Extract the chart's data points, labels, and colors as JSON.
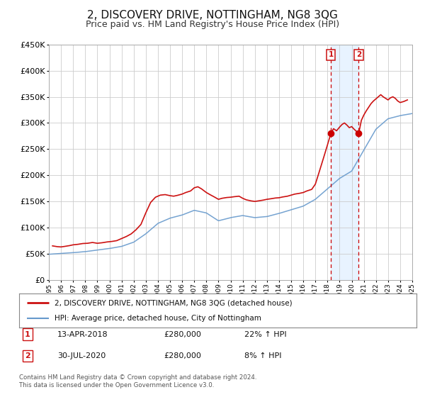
{
  "title": "2, DISCOVERY DRIVE, NOTTINGHAM, NG8 3QG",
  "subtitle": "Price paid vs. HM Land Registry's House Price Index (HPI)",
  "background_color": "#ffffff",
  "plot_bg_color": "#ffffff",
  "grid_color": "#cccccc",
  "title_fontsize": 11,
  "subtitle_fontsize": 9,
  "legend_label_red": "2, DISCOVERY DRIVE, NOTTINGHAM, NG8 3QG (detached house)",
  "legend_label_blue": "HPI: Average price, detached house, City of Nottingham",
  "transaction1_date": "13-APR-2018",
  "transaction1_price": "£280,000",
  "transaction1_hpi": "22% ↑ HPI",
  "transaction2_date": "30-JUL-2020",
  "transaction2_price": "£280,000",
  "transaction2_hpi": "8% ↑ HPI",
  "shade_color": "#ddeeff",
  "vline_color": "#cc0000",
  "dot_color": "#cc0000",
  "footer_text": "Contains HM Land Registry data © Crown copyright and database right 2024.\nThis data is licensed under the Open Government Licence v3.0.",
  "ylim_max": 450000,
  "ylim_min": 0,
  "red_line_color": "#cc1111",
  "blue_line_color": "#6699cc",
  "hpi_years": [
    1995,
    1996,
    1997,
    1998,
    1999,
    2000,
    2001,
    2002,
    2003,
    2004,
    2005,
    2006,
    2007,
    2008,
    2009,
    2010,
    2011,
    2012,
    2013,
    2014,
    2015,
    2016,
    2017,
    2018,
    2019,
    2020,
    2021,
    2022,
    2023,
    2024,
    2025
  ],
  "hpi_values": [
    49000,
    50500,
    52000,
    54000,
    57000,
    60000,
    64000,
    72000,
    88000,
    108000,
    118000,
    124000,
    133000,
    128000,
    113000,
    119000,
    123000,
    119000,
    121000,
    127000,
    134000,
    141000,
    154000,
    174000,
    194000,
    208000,
    248000,
    288000,
    308000,
    314000,
    318000
  ],
  "price_data": [
    [
      1995.3,
      65000
    ],
    [
      1995.7,
      63500
    ],
    [
      1996.0,
      63000
    ],
    [
      1996.3,
      64000
    ],
    [
      1996.7,
      65500
    ],
    [
      1997.0,
      67000
    ],
    [
      1997.4,
      68000
    ],
    [
      1997.8,
      69500
    ],
    [
      1998.2,
      70000
    ],
    [
      1998.6,
      71500
    ],
    [
      1999.0,
      70000
    ],
    [
      1999.4,
      71000
    ],
    [
      1999.8,
      72500
    ],
    [
      2000.2,
      73500
    ],
    [
      2000.6,
      75000
    ],
    [
      2001.0,
      79000
    ],
    [
      2001.4,
      83000
    ],
    [
      2001.8,
      88000
    ],
    [
      2002.2,
      96000
    ],
    [
      2002.6,
      106000
    ],
    [
      2003.0,
      128000
    ],
    [
      2003.4,
      148000
    ],
    [
      2003.8,
      158000
    ],
    [
      2004.2,
      162000
    ],
    [
      2004.6,
      163000
    ],
    [
      2005.0,
      161000
    ],
    [
      2005.3,
      160000
    ],
    [
      2005.6,
      161500
    ],
    [
      2006.0,
      164000
    ],
    [
      2006.3,
      167000
    ],
    [
      2006.7,
      170000
    ],
    [
      2007.0,
      176000
    ],
    [
      2007.3,
      178000
    ],
    [
      2007.6,
      174000
    ],
    [
      2008.0,
      167000
    ],
    [
      2008.3,
      163000
    ],
    [
      2008.7,
      158000
    ],
    [
      2009.0,
      154000
    ],
    [
      2009.3,
      156000
    ],
    [
      2009.7,
      157500
    ],
    [
      2010.0,
      158000
    ],
    [
      2010.3,
      159000
    ],
    [
      2010.7,
      160000
    ],
    [
      2011.0,
      156000
    ],
    [
      2011.3,
      153000
    ],
    [
      2011.7,
      151000
    ],
    [
      2012.0,
      150000
    ],
    [
      2012.3,
      151000
    ],
    [
      2012.7,
      152500
    ],
    [
      2013.0,
      154000
    ],
    [
      2013.3,
      155000
    ],
    [
      2013.7,
      156500
    ],
    [
      2014.0,
      157000
    ],
    [
      2014.3,
      158500
    ],
    [
      2014.7,
      160000
    ],
    [
      2015.0,
      162000
    ],
    [
      2015.3,
      164000
    ],
    [
      2015.7,
      165500
    ],
    [
      2016.0,
      167000
    ],
    [
      2016.3,
      170000
    ],
    [
      2016.7,
      173000
    ],
    [
      2017.0,
      183000
    ],
    [
      2017.3,
      205000
    ],
    [
      2017.7,
      235000
    ],
    [
      2018.0,
      258000
    ],
    [
      2018.28,
      280000
    ],
    [
      2018.5,
      289000
    ],
    [
      2018.75,
      285000
    ],
    [
      2019.0,
      292000
    ],
    [
      2019.2,
      297000
    ],
    [
      2019.4,
      300000
    ],
    [
      2019.6,
      296000
    ],
    [
      2019.8,
      291000
    ],
    [
      2020.0,
      293000
    ],
    [
      2020.2,
      288000
    ],
    [
      2020.58,
      280000
    ],
    [
      2020.8,
      305000
    ],
    [
      2021.0,
      315000
    ],
    [
      2021.2,
      323000
    ],
    [
      2021.4,
      330000
    ],
    [
      2021.6,
      337000
    ],
    [
      2021.8,
      342000
    ],
    [
      2022.0,
      346000
    ],
    [
      2022.2,
      350000
    ],
    [
      2022.4,
      354000
    ],
    [
      2022.6,
      350000
    ],
    [
      2022.8,
      347000
    ],
    [
      2023.0,
      344000
    ],
    [
      2023.2,
      348000
    ],
    [
      2023.4,
      350000
    ],
    [
      2023.6,
      347000
    ],
    [
      2023.8,
      342000
    ],
    [
      2024.0,
      339000
    ],
    [
      2024.3,
      341000
    ],
    [
      2024.6,
      344000
    ]
  ],
  "vline1_year": 2018.28,
  "vline2_year": 2020.58,
  "dot1_value": 280000,
  "dot2_value": 280000,
  "xmin": 1995,
  "xmax": 2025
}
